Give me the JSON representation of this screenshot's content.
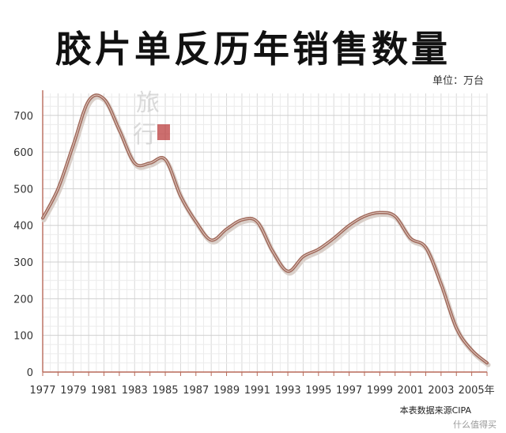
{
  "chart_data": {
    "type": "line",
    "title": "胶片单反历年销售数量",
    "unit": "单位：万台",
    "x": [
      1977,
      1978,
      1979,
      1980,
      1981,
      1982,
      1983,
      1984,
      1985,
      1986,
      1987,
      1988,
      1989,
      1990,
      1991,
      1992,
      1993,
      1994,
      1995,
      1996,
      1997,
      1998,
      1999,
      2000,
      2001,
      2002,
      2003,
      2004,
      2005,
      2006
    ],
    "series": [
      {
        "values": [
          420,
          500,
          620,
          740,
          745,
          660,
          570,
          570,
          580,
          480,
          410,
          360,
          390,
          415,
          410,
          330,
          275,
          315,
          335,
          365,
          400,
          425,
          435,
          425,
          365,
          340,
          240,
          120,
          60,
          25
        ],
        "color": "#a06a5c"
      }
    ],
    "x_ticks": [
      "1977",
      "1979",
      "1981",
      "1983",
      "1985",
      "1987",
      "1989",
      "1991",
      "1993",
      "1995",
      "1997",
      "1999",
      "2001",
      "2003",
      "2005年"
    ],
    "y_ticks": [
      "0",
      "100",
      "200",
      "300",
      "400",
      "500",
      "600",
      "700"
    ],
    "xlim": [
      1977,
      2006
    ],
    "ylim": [
      0,
      760
    ],
    "grid": true,
    "source": "本表数据来源CIPA",
    "watermark": "什么值得买"
  }
}
